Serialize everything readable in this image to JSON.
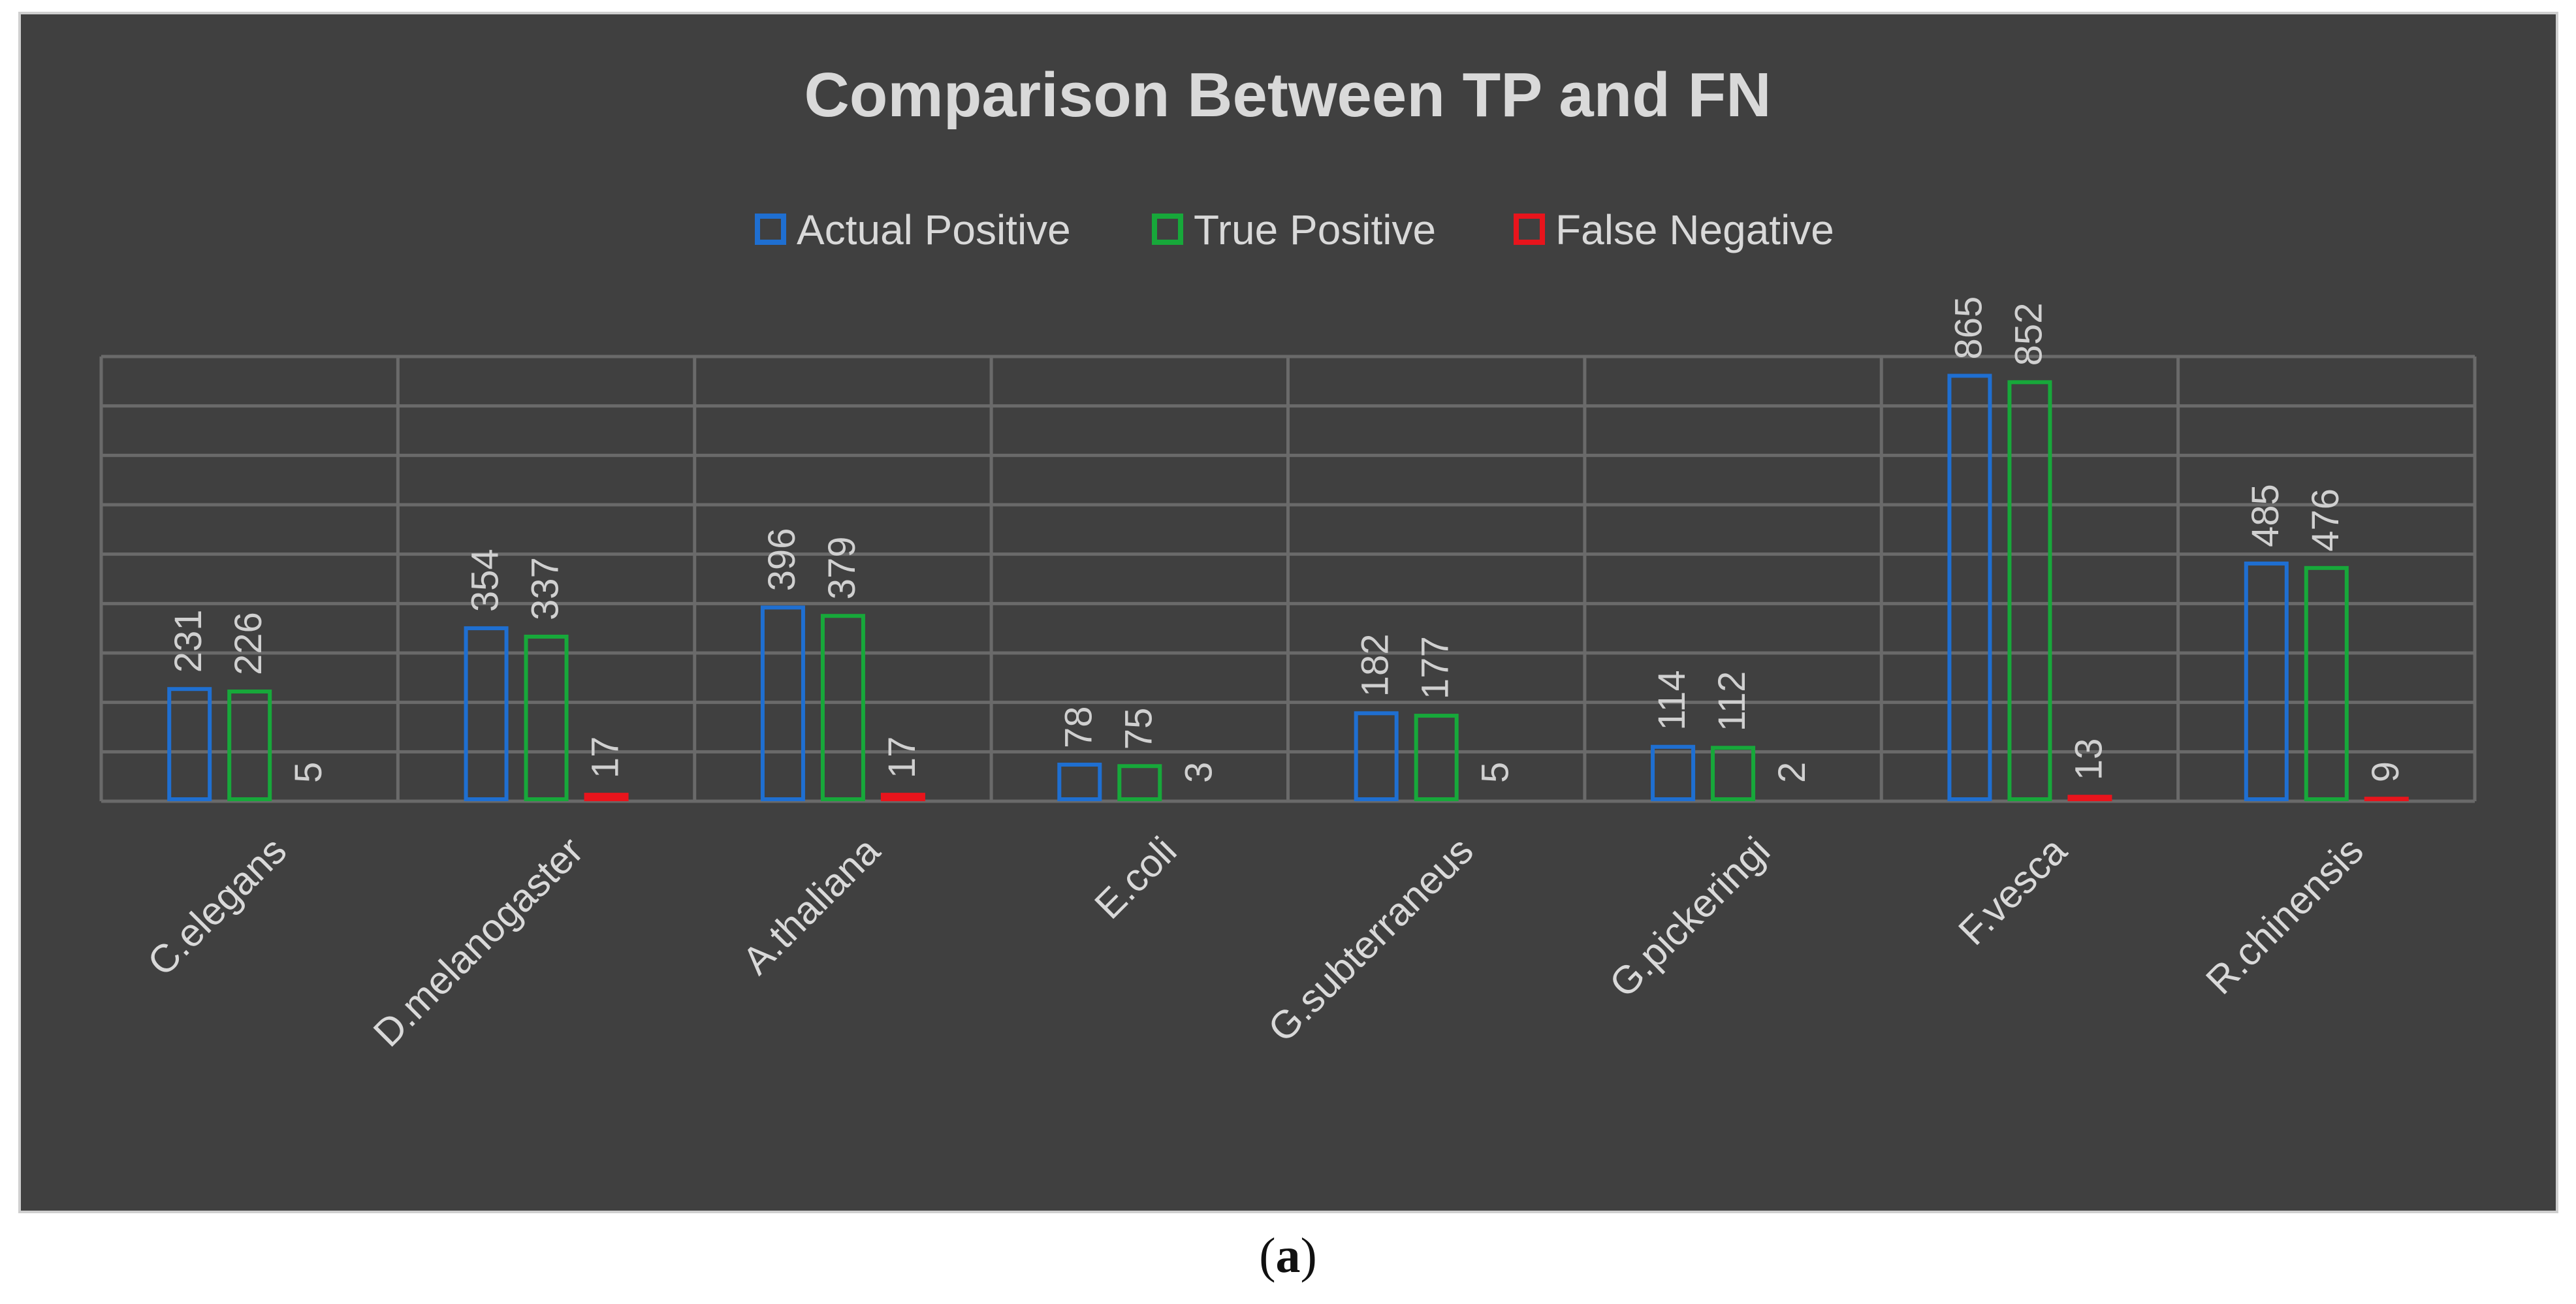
{
  "chart_data": {
    "type": "bar",
    "title": "Comparison Between TP and FN",
    "xlabel": "",
    "ylabel": "",
    "ylim": [
      0,
      900
    ],
    "grid": true,
    "legend_position": "top-center",
    "categories": [
      "C.elegans",
      "D.melanogaster",
      "A.thaliana",
      "E.coli",
      "G.subterraneus",
      "G.pickeringi",
      "F.vesca",
      "R.chinensis"
    ],
    "series": [
      {
        "name": "Actual Positive",
        "color": "#1f6fd1",
        "values": [
          231,
          354,
          396,
          78,
          182,
          114,
          865,
          485
        ]
      },
      {
        "name": "True Positive",
        "color": "#17a83a",
        "values": [
          226,
          337,
          379,
          75,
          177,
          112,
          852,
          476
        ]
      },
      {
        "name": "False Negative",
        "color": "#e8141c",
        "values": [
          5,
          17,
          17,
          3,
          5,
          2,
          13,
          9
        ]
      }
    ]
  },
  "caption": {
    "open": "(",
    "letter": "a",
    "close": ")"
  }
}
